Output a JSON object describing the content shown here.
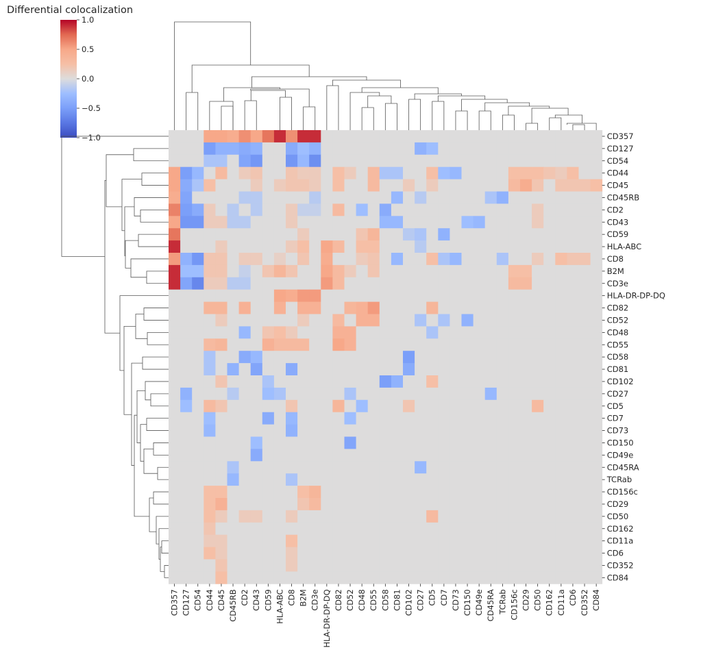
{
  "chart_data": {
    "type": "heatmap",
    "title": "Differential colocalization",
    "row_labels": [
      "CD357",
      "CD127",
      "CD54",
      "CD44",
      "CD45",
      "CD45RB",
      "CD2",
      "CD43",
      "CD59",
      "HLA-ABC",
      "CD8",
      "B2M",
      "CD3e",
      "HLA-DR-DP-DQ",
      "CD82",
      "CD52",
      "CD48",
      "CD55",
      "CD58",
      "CD81",
      "CD102",
      "CD27",
      "CD5",
      "CD7",
      "CD73",
      "CD150",
      "CD49e",
      "CD45RA",
      "TCRab",
      "CD156c",
      "CD29",
      "CD50",
      "CD162",
      "CD11a",
      "CD6",
      "CD352",
      "CD84"
    ],
    "col_labels": [
      "CD357",
      "CD127",
      "CD54",
      "CD44",
      "CD45",
      "CD45RB",
      "CD2",
      "CD43",
      "CD59",
      "HLA-ABC",
      "CD8",
      "B2M",
      "CD3e",
      "HLA-DR-DP-DQ",
      "CD82",
      "CD52",
      "CD48",
      "CD55",
      "CD58",
      "CD81",
      "CD102",
      "CD27",
      "CD5",
      "CD7",
      "CD73",
      "CD150",
      "CD49e",
      "CD45RA",
      "TCRab",
      "CD156c",
      "CD29",
      "CD50",
      "CD162",
      "CD11a",
      "CD6",
      "CD352",
      "CD84"
    ],
    "values": [
      [
        0,
        0,
        0,
        0.5,
        0.5,
        0.45,
        0.6,
        0.5,
        0.7,
        0.9,
        0.6,
        0.9,
        0.9,
        0,
        0,
        0,
        0,
        0,
        0,
        0,
        0,
        0,
        0,
        0,
        0,
        0,
        0,
        0,
        0,
        0,
        0,
        0,
        0,
        0,
        0,
        0,
        0
      ],
      [
        0,
        0,
        0,
        -0.5,
        -0.35,
        -0.35,
        -0.4,
        -0.35,
        0,
        0,
        -0.4,
        -0.25,
        -0.35,
        0,
        0,
        0,
        0,
        0,
        0,
        0,
        0,
        -0.35,
        -0.25,
        0,
        0,
        0,
        0,
        0,
        0,
        0,
        0,
        0,
        0,
        0,
        0,
        0,
        0
      ],
      [
        0,
        0,
        0,
        -0.2,
        -0.2,
        0,
        -0.45,
        -0.55,
        0,
        0,
        -0.55,
        -0.3,
        -0.6,
        0,
        0,
        0,
        0,
        0,
        0,
        0,
        0,
        0,
        0,
        0,
        0,
        0,
        0,
        0,
        0,
        0,
        0,
        0,
        0,
        0,
        0,
        0,
        0
      ],
      [
        0.5,
        -0.5,
        -0.3,
        0,
        0.3,
        0,
        0.15,
        0.2,
        0,
        0,
        0.2,
        0.15,
        0.15,
        0,
        0.25,
        0.15,
        0,
        0.3,
        -0.2,
        -0.2,
        0,
        0,
        0.25,
        -0.25,
        -0.3,
        0,
        0,
        0,
        0,
        0.25,
        0.25,
        0.25,
        0.2,
        0.15,
        0.25,
        0,
        0
      ],
      [
        0.5,
        -0.4,
        -0.2,
        0.25,
        0,
        0,
        0,
        0.15,
        0,
        0.15,
        0.2,
        0.2,
        0.15,
        0,
        0.25,
        0,
        0,
        0.3,
        0,
        0,
        0.15,
        0,
        0.15,
        0,
        0,
        0,
        0,
        0,
        0,
        0.3,
        0.45,
        0.2,
        0,
        0.2,
        0.2,
        0.2,
        0.25
      ],
      [
        0.45,
        -0.45,
        0,
        0,
        0,
        0,
        -0.15,
        -0.15,
        0,
        0,
        0,
        0,
        -0.15,
        0,
        0,
        0,
        0,
        0,
        0,
        -0.3,
        0,
        -0.15,
        0,
        0,
        0,
        0,
        0,
        -0.2,
        -0.35,
        0,
        0,
        0,
        0,
        0,
        0,
        0,
        0
      ],
      [
        0.65,
        -0.5,
        -0.4,
        0.15,
        0,
        -0.15,
        0,
        -0.15,
        0,
        0,
        0.15,
        -0.1,
        -0.1,
        0,
        0.3,
        0,
        -0.25,
        0,
        -0.4,
        0,
        0,
        0,
        0,
        0,
        0,
        0,
        0,
        0,
        0,
        0,
        0,
        0.15,
        0,
        0,
        0,
        0,
        0
      ],
      [
        0.5,
        -0.55,
        -0.55,
        0.15,
        0.15,
        -0.15,
        -0.15,
        0,
        0,
        0,
        0.15,
        0,
        0,
        0,
        0,
        0,
        0,
        0,
        -0.3,
        -0.3,
        0,
        0,
        0,
        0,
        0,
        -0.25,
        -0.3,
        0,
        0,
        0,
        0,
        0.15,
        0,
        0,
        0,
        0,
        0
      ],
      [
        0.7,
        0,
        0,
        0,
        0,
        0,
        0,
        0,
        0,
        0,
        0,
        0.15,
        0,
        0,
        0,
        0,
        0.2,
        0.35,
        0,
        0,
        -0.15,
        -0.2,
        0,
        -0.35,
        0,
        0,
        0,
        0,
        0,
        0,
        0,
        0,
        0,
        0,
        0,
        0,
        0
      ],
      [
        0.9,
        0,
        0,
        0,
        0.15,
        0,
        0,
        0,
        0,
        0,
        0.15,
        0.25,
        0,
        0.5,
        0.3,
        0,
        0.25,
        0.25,
        0,
        0,
        0,
        -0.15,
        0,
        0,
        0,
        0,
        0,
        0,
        0,
        0,
        0,
        0,
        0,
        0,
        0,
        0,
        0
      ],
      [
        0.55,
        -0.35,
        -0.55,
        0.2,
        0.2,
        0,
        0.15,
        0.15,
        0,
        0.1,
        0,
        0.2,
        0,
        0.45,
        0,
        0,
        0.15,
        0.2,
        0,
        -0.3,
        0,
        0,
        0.25,
        -0.2,
        -0.3,
        0,
        0,
        0,
        -0.2,
        0,
        0,
        0.15,
        0,
        0.25,
        0.2,
        0.2,
        0
      ],
      [
        0.9,
        -0.25,
        -0.25,
        0.2,
        0.2,
        0,
        -0.1,
        0,
        0.2,
        0.35,
        0.2,
        0,
        0,
        0.5,
        0.3,
        0.15,
        0,
        0.2,
        0,
        0,
        0,
        0,
        0,
        0,
        0,
        0,
        0,
        0,
        0,
        0.25,
        0.25,
        0,
        0,
        0,
        0,
        0,
        0
      ],
      [
        0.9,
        -0.45,
        -0.65,
        0.15,
        0.15,
        -0.15,
        -0.15,
        0,
        0,
        0,
        0,
        0,
        0,
        0.55,
        0.3,
        0,
        0,
        0,
        0,
        0,
        0,
        0,
        0,
        0,
        0,
        0,
        0,
        0,
        0,
        0.3,
        0.3,
        0,
        0,
        0,
        0,
        0,
        0
      ],
      [
        0,
        0,
        0,
        0,
        0,
        0,
        0,
        0,
        0,
        0.5,
        0.45,
        0.55,
        0.55,
        0,
        0,
        0,
        0,
        0,
        0,
        0,
        0,
        0,
        0,
        0,
        0,
        0,
        0,
        0,
        0,
        0,
        0,
        0,
        0,
        0,
        0,
        0,
        0
      ],
      [
        0,
        0,
        0,
        0.35,
        0.35,
        0,
        0.4,
        0,
        0,
        0.4,
        0,
        0.4,
        0.4,
        0,
        0,
        0.35,
        0.4,
        0.55,
        0,
        0,
        0,
        0,
        0.35,
        0,
        0,
        0,
        0,
        0,
        0,
        0,
        0,
        0,
        0,
        0,
        0,
        0,
        0
      ],
      [
        0,
        0,
        0,
        0,
        0.15,
        0,
        0,
        0,
        0,
        0,
        0,
        0.15,
        0,
        0,
        0.3,
        0,
        0.4,
        0.4,
        0,
        0,
        0,
        -0.2,
        0,
        -0.2,
        0,
        -0.35,
        0,
        0,
        0,
        0,
        0,
        0,
        0,
        0,
        0,
        0,
        0
      ],
      [
        0,
        0,
        0,
        0,
        0,
        0,
        -0.3,
        0,
        0.2,
        0.25,
        0.15,
        0,
        0,
        0,
        0.4,
        0.4,
        0,
        0,
        0,
        0,
        0,
        0,
        -0.2,
        0,
        0,
        0,
        0,
        0,
        0,
        0,
        0,
        0,
        0,
        0,
        0,
        0,
        0
      ],
      [
        0,
        0,
        0,
        0.3,
        0.35,
        0,
        0,
        0,
        0.4,
        0.3,
        0.3,
        0.3,
        0,
        0,
        0.5,
        0.4,
        0,
        0,
        0,
        0,
        0,
        0,
        0,
        0,
        0,
        0,
        0,
        0,
        0,
        0,
        0,
        0,
        0,
        0,
        0,
        0,
        0
      ],
      [
        0,
        0,
        0,
        -0.2,
        0,
        0,
        -0.4,
        -0.3,
        0,
        0,
        0,
        0,
        0,
        0,
        0,
        0,
        0,
        0,
        0,
        0,
        -0.5,
        0,
        0,
        0,
        0,
        0,
        0,
        0,
        0,
        0,
        0,
        0,
        0,
        0,
        0,
        0,
        0
      ],
      [
        0,
        0,
        0,
        -0.2,
        0,
        -0.35,
        0,
        -0.45,
        0,
        0,
        -0.4,
        0,
        0,
        0,
        0,
        0,
        0,
        0,
        0,
        0,
        -0.4,
        0,
        0,
        0,
        0,
        0,
        0,
        0,
        0,
        0,
        0,
        0,
        0,
        0,
        0,
        0,
        0
      ],
      [
        0,
        0,
        0,
        0,
        0.2,
        0,
        0,
        0,
        -0.2,
        0,
        0,
        0,
        0,
        0,
        0,
        0,
        0,
        0,
        -0.5,
        -0.35,
        0,
        0,
        0.25,
        0,
        0,
        0,
        0,
        0,
        0,
        0,
        0,
        0,
        0,
        0,
        0,
        0,
        0
      ],
      [
        0,
        -0.35,
        0,
        0,
        0,
        -0.15,
        0,
        0,
        -0.25,
        -0.2,
        0,
        0,
        0,
        0,
        0,
        -0.2,
        0,
        0,
        0,
        0,
        0,
        0,
        0,
        0,
        0,
        0,
        0,
        -0.3,
        0,
        0,
        0,
        0,
        0,
        0,
        0,
        0,
        0
      ],
      [
        0,
        -0.25,
        0,
        0.3,
        0.2,
        0,
        0,
        0,
        0,
        0,
        0.2,
        0,
        0,
        0,
        0.35,
        0,
        -0.25,
        0,
        0,
        0,
        0.2,
        0,
        0,
        0,
        0,
        0,
        0,
        0,
        0,
        0,
        0,
        0.3,
        0,
        0,
        0,
        0,
        0
      ],
      [
        0,
        0,
        0,
        -0.25,
        0,
        0,
        0,
        0,
        -0.4,
        0,
        -0.3,
        0,
        0,
        0,
        0,
        -0.25,
        0,
        0,
        0,
        0,
        0,
        0,
        0,
        0,
        0,
        0,
        0,
        0,
        0,
        0,
        0,
        0,
        0,
        0,
        0,
        0,
        0
      ],
      [
        0,
        0,
        0,
        -0.3,
        0,
        0,
        0,
        0,
        0,
        0,
        -0.35,
        0,
        0,
        0,
        0,
        0,
        0,
        0,
        0,
        0,
        0,
        0,
        0,
        0,
        0,
        0,
        0,
        0,
        0,
        0,
        0,
        0,
        0,
        0,
        0,
        0,
        0
      ],
      [
        0,
        0,
        0,
        0,
        0,
        0,
        0,
        -0.25,
        0,
        0,
        0,
        0,
        0,
        0,
        0,
        -0.45,
        0,
        0,
        0,
        0,
        0,
        0,
        0,
        0,
        0,
        0,
        0,
        0,
        0,
        0,
        0,
        0,
        0,
        0,
        0,
        0,
        0
      ],
      [
        0,
        0,
        0,
        0,
        0,
        0,
        0,
        -0.4,
        0,
        0,
        0,
        0,
        0,
        0,
        0,
        0,
        0,
        0,
        0,
        0,
        0,
        0,
        0,
        0,
        0,
        0,
        0,
        0,
        0,
        0,
        0,
        0,
        0,
        0,
        0,
        0,
        0
      ],
      [
        0,
        0,
        0,
        0,
        0,
        -0.2,
        0,
        0,
        0,
        0,
        0,
        0,
        0,
        0,
        0,
        0,
        0,
        0,
        0,
        0,
        0,
        -0.3,
        0,
        0,
        0,
        0,
        0,
        0,
        0,
        0,
        0,
        0,
        0,
        0,
        0,
        0,
        0
      ],
      [
        0,
        0,
        0,
        0,
        0,
        -0.3,
        0,
        0,
        0,
        0,
        -0.2,
        0,
        0,
        0,
        0,
        0,
        0,
        0,
        0,
        0,
        0,
        0,
        0,
        0,
        0,
        0,
        0,
        0,
        0,
        0,
        0,
        0,
        0,
        0,
        0,
        0,
        0
      ],
      [
        0,
        0,
        0,
        0.25,
        0.25,
        0,
        0,
        0,
        0,
        0,
        0,
        0.25,
        0.35,
        0,
        0,
        0,
        0,
        0,
        0,
        0,
        0,
        0,
        0,
        0,
        0,
        0,
        0,
        0,
        0,
        0,
        0,
        0,
        0,
        0,
        0,
        0,
        0
      ],
      [
        0,
        0,
        0,
        0.25,
        0.4,
        0,
        0,
        0,
        0,
        0,
        0,
        0.2,
        0.3,
        0,
        0,
        0,
        0,
        0,
        0,
        0,
        0,
        0,
        0,
        0,
        0,
        0,
        0,
        0,
        0,
        0,
        0,
        0,
        0,
        0,
        0,
        0,
        0
      ],
      [
        0,
        0,
        0,
        0.25,
        0.15,
        0,
        0.15,
        0.15,
        0,
        0,
        0.15,
        0,
        0,
        0,
        0,
        0,
        0,
        0,
        0,
        0,
        0,
        0,
        0.3,
        0,
        0,
        0,
        0,
        0,
        0,
        0,
        0,
        0,
        0,
        0,
        0,
        0,
        0
      ],
      [
        0,
        0,
        0,
        0.2,
        0,
        0,
        0,
        0,
        0,
        0,
        0,
        0,
        0,
        0,
        0,
        0,
        0,
        0,
        0,
        0,
        0,
        0,
        0,
        0,
        0,
        0,
        0,
        0,
        0,
        0,
        0,
        0,
        0,
        0,
        0,
        0,
        0
      ],
      [
        0,
        0,
        0,
        0.15,
        0.15,
        0,
        0,
        0,
        0,
        0,
        0.25,
        0,
        0,
        0,
        0,
        0,
        0,
        0,
        0,
        0,
        0,
        0,
        0,
        0,
        0,
        0,
        0,
        0,
        0,
        0,
        0,
        0,
        0,
        0,
        0,
        0,
        0
      ],
      [
        0,
        0,
        0,
        0.25,
        0.15,
        0,
        0,
        0,
        0,
        0,
        0.15,
        0,
        0,
        0,
        0,
        0,
        0,
        0,
        0,
        0,
        0,
        0,
        0,
        0,
        0,
        0,
        0,
        0,
        0,
        0,
        0,
        0,
        0,
        0,
        0,
        0,
        0
      ],
      [
        0,
        0,
        0,
        0,
        0.2,
        0,
        0,
        0,
        0,
        0,
        0.15,
        0,
        0,
        0,
        0,
        0,
        0,
        0,
        0,
        0,
        0,
        0,
        0,
        0,
        0,
        0,
        0,
        0,
        0,
        0,
        0,
        0,
        0,
        0,
        0,
        0,
        0
      ],
      [
        0,
        0,
        0,
        0,
        0.25,
        0,
        0,
        0,
        0,
        0,
        0,
        0,
        0,
        0,
        0,
        0,
        0,
        0,
        0,
        0,
        0,
        0,
        0,
        0,
        0,
        0,
        0,
        0,
        0,
        0,
        0,
        0,
        0,
        0,
        0,
        0,
        0
      ]
    ],
    "value_range": [
      -1.0,
      1.0
    ],
    "colormap": "coolwarm",
    "colorbar_ticks": [
      "1.0",
      "0.5",
      "0.0",
      "−0.5",
      "−1.0"
    ],
    "colorbar_tick_values": [
      1.0,
      0.5,
      0.0,
      -0.5,
      -1.0
    ],
    "colorbar_placement": "top-left",
    "row_dendrogram": "left",
    "col_dendrogram": "top",
    "grid": false
  }
}
